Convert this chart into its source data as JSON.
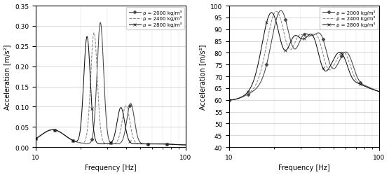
{
  "left_chart": {
    "ylabel": "Acceleration [m/s²]",
    "xlabel": "Frequency [Hz]",
    "ylim": [
      0.0,
      0.35
    ],
    "yticks": [
      0.0,
      0.05,
      0.1,
      0.15,
      0.2,
      0.25,
      0.3,
      0.35
    ],
    "xlim": [
      10,
      100
    ],
    "legend_labels": [
      "ρ = 2000 kg/m³",
      "ρ = 2400 kg/m³",
      "ρ = 2800 kg/m³"
    ],
    "line_styles": [
      "-",
      "--",
      "-"
    ],
    "markers": [
      "D",
      "",
      "x"
    ],
    "colors": [
      "#444444",
      "#888888",
      "#111111"
    ]
  },
  "right_chart": {
    "ylabel": "Acceleration [m/s²]",
    "xlabel": "Frequency [Hz]",
    "ylim": [
      40,
      100
    ],
    "yticks": [
      40,
      45,
      50,
      55,
      60,
      65,
      70,
      75,
      80,
      85,
      90,
      95,
      100
    ],
    "xlim": [
      10,
      100
    ],
    "legend_labels": [
      "ρ = 2000 kg/m³",
      "ρ = 2400 kg/m³",
      "ρ = 2800 kg/m³"
    ],
    "line_styles": [
      "-",
      "--",
      "-"
    ],
    "markers": [
      "D",
      "",
      "x"
    ],
    "colors": [
      "#444444",
      "#888888",
      "#111111"
    ]
  }
}
